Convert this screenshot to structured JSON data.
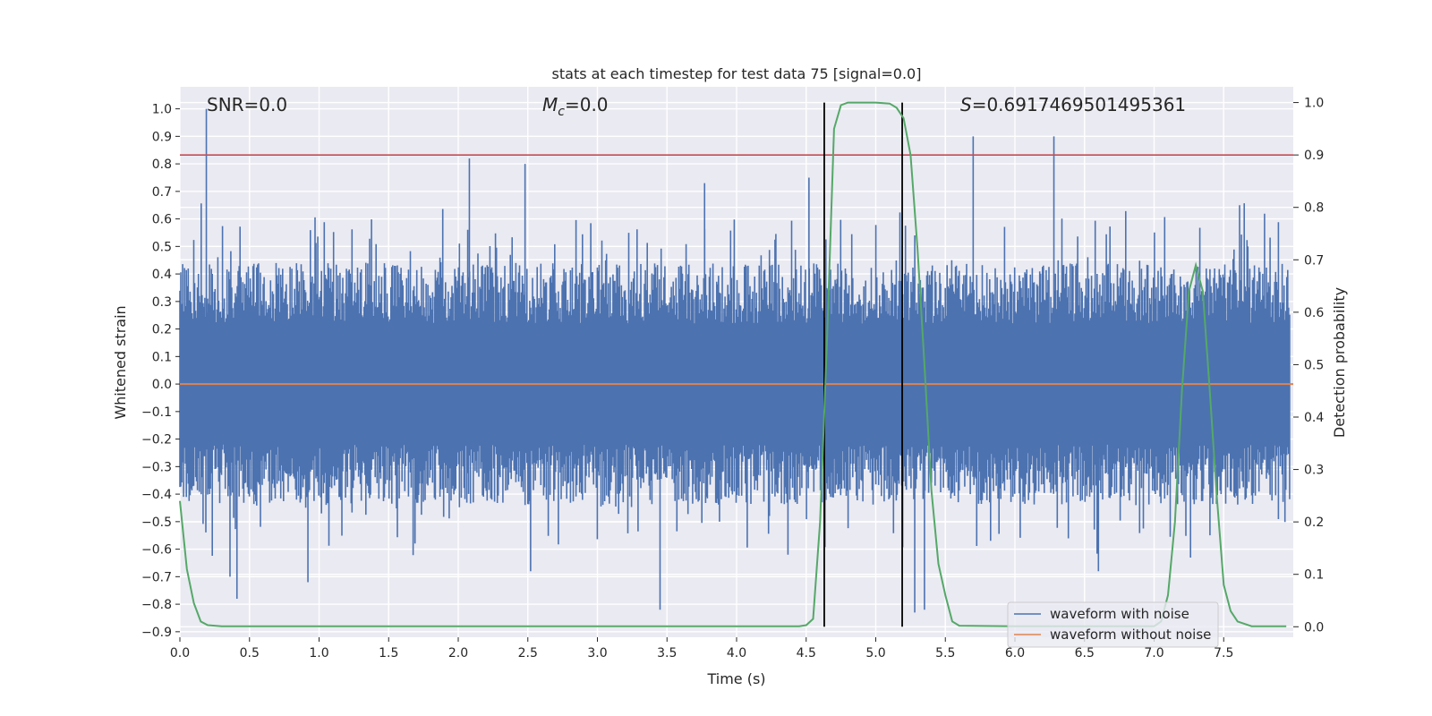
{
  "chart_data": {
    "type": "line",
    "title": "stats at each timestep for test data 75 [signal=0.0]",
    "xlabel": "Time (s)",
    "ylabel": "Whitened strain",
    "ylabel_right": "Detection probability",
    "xlim": [
      0.0,
      8.0
    ],
    "ylim": [
      -0.92,
      1.08
    ],
    "ylim_right": [
      -0.02,
      1.03
    ],
    "x_ticks": [
      "0.0",
      "0.5",
      "1.0",
      "1.5",
      "2.0",
      "2.5",
      "3.0",
      "3.5",
      "4.0",
      "4.5",
      "5.0",
      "5.5",
      "6.0",
      "6.5",
      "7.0",
      "7.5"
    ],
    "y_ticks": [
      "1.0",
      "0.9",
      "0.8",
      "0.7",
      "0.6",
      "0.5",
      "0.4",
      "0.3",
      "0.2",
      "0.1",
      "0.0",
      "−0.1",
      "−0.2",
      "−0.3",
      "−0.4",
      "−0.5",
      "−0.6",
      "−0.7",
      "−0.8",
      "−0.9"
    ],
    "y_ticks_right": [
      "1.0",
      "0.9",
      "0.8",
      "0.7",
      "0.6",
      "0.5",
      "0.4",
      "0.3",
      "0.2",
      "0.1",
      "0.0"
    ],
    "annotations": {
      "snr": "SNR=0.0",
      "mc_sym": "M",
      "mc_sub": "c",
      "mc_val": "=0.0",
      "s_sym": "S",
      "s_val": "=0.6917469501495361"
    },
    "threshold_right": 0.9,
    "vlines": [
      4.63,
      5.19
    ],
    "series": [
      {
        "name": "waveform with noise",
        "color": "#4c72b0",
        "envelope": {
          "upper_typical": 0.4,
          "lower_typical": -0.4
        },
        "peaks": [
          {
            "x": 0.19,
            "y": 1.0
          },
          {
            "x": 0.41,
            "y": -0.78
          },
          {
            "x": 0.36,
            "y": -0.7
          },
          {
            "x": 0.92,
            "y": -0.72
          },
          {
            "x": 2.08,
            "y": 0.82
          },
          {
            "x": 2.48,
            "y": 0.8
          },
          {
            "x": 2.52,
            "y": -0.68
          },
          {
            "x": 3.45,
            "y": -0.82
          },
          {
            "x": 3.77,
            "y": 0.73
          },
          {
            "x": 4.52,
            "y": 0.75
          },
          {
            "x": 5.28,
            "y": -0.83
          },
          {
            "x": 5.35,
            "y": -0.82
          },
          {
            "x": 5.7,
            "y": 0.9
          },
          {
            "x": 6.28,
            "y": 0.9
          },
          {
            "x": 6.6,
            "y": -0.68
          }
        ]
      },
      {
        "name": "waveform without noise",
        "color": "#dd8452",
        "x": [
          0.0,
          8.0
        ],
        "y": [
          0.0,
          0.0
        ]
      },
      {
        "name": "detection probability",
        "color": "#55a868",
        "axis": "right",
        "x": [
          0.0,
          0.05,
          0.1,
          0.15,
          0.2,
          0.3,
          0.5,
          1.0,
          2.0,
          3.0,
          4.0,
          4.45,
          4.5,
          4.55,
          4.6,
          4.65,
          4.7,
          4.75,
          4.8,
          5.0,
          5.1,
          5.15,
          5.2,
          5.25,
          5.3,
          5.35,
          5.4,
          5.45,
          5.5,
          5.55,
          5.6,
          6.0,
          6.5,
          7.0,
          7.05,
          7.1,
          7.15,
          7.2,
          7.25,
          7.3,
          7.35,
          7.4,
          7.45,
          7.5,
          7.55,
          7.6,
          7.7,
          7.8,
          7.95
        ],
        "y": [
          0.24,
          0.11,
          0.045,
          0.01,
          0.003,
          0.001,
          0.001,
          0.001,
          0.001,
          0.001,
          0.001,
          0.001,
          0.003,
          0.015,
          0.2,
          0.55,
          0.95,
          0.995,
          1.0,
          1.0,
          0.998,
          0.99,
          0.97,
          0.9,
          0.72,
          0.5,
          0.26,
          0.12,
          0.06,
          0.01,
          0.002,
          0.001,
          0.001,
          0.001,
          0.01,
          0.06,
          0.2,
          0.45,
          0.64,
          0.69,
          0.64,
          0.45,
          0.25,
          0.08,
          0.03,
          0.01,
          0.001,
          0.001,
          0.001
        ]
      }
    ],
    "legend": {
      "position": "lower-right",
      "entries": [
        {
          "label": "waveform with noise",
          "color": "#4c72b0"
        },
        {
          "label": "waveform without noise",
          "color": "#dd8452"
        }
      ]
    },
    "colors": {
      "axes_bg": "#eaeaf2",
      "grid": "#ffffff",
      "threshold": "#c44e52",
      "vline": "#000000",
      "text": "#262626"
    }
  }
}
